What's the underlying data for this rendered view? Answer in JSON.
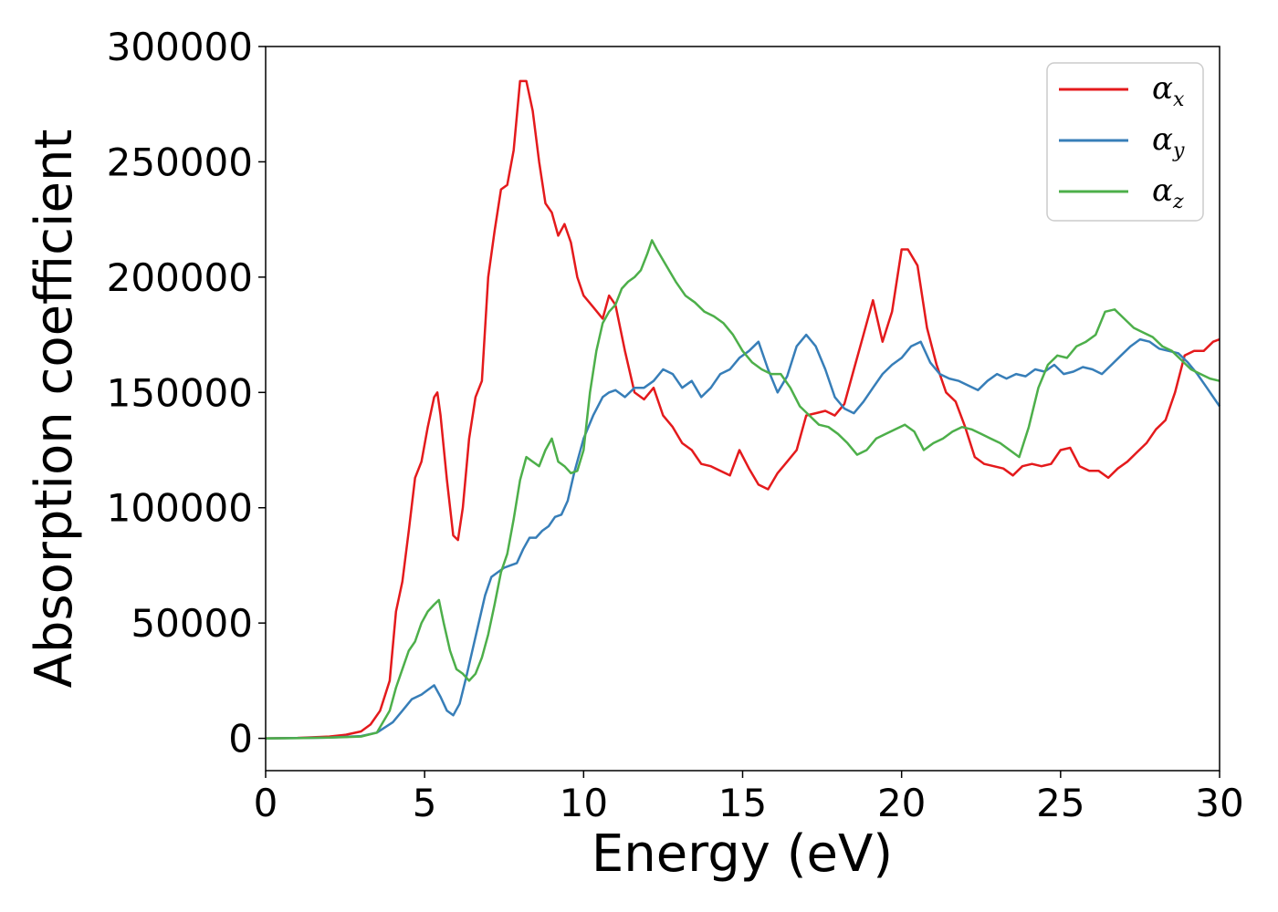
{
  "chart_data": {
    "type": "line",
    "title": "",
    "xlabel": "Energy (eV)",
    "ylabel": "Absorption coefficient",
    "xlim": [
      0,
      30
    ],
    "ylim": [
      -14000,
      300000
    ],
    "xticks": [
      0,
      5,
      10,
      15,
      20,
      25,
      30
    ],
    "yticks": [
      0,
      50000,
      100000,
      150000,
      200000,
      250000,
      300000
    ],
    "grid": false,
    "legend_position": "top-right",
    "series": [
      {
        "name": "α_x",
        "legend_symbol": "α",
        "legend_subscript": "x",
        "color": "#e41a1c",
        "x": [
          0,
          1,
          2,
          2.5,
          3,
          3.3,
          3.6,
          3.9,
          4.1,
          4.3,
          4.5,
          4.7,
          4.9,
          5.1,
          5.3,
          5.4,
          5.5,
          5.7,
          5.9,
          6.05,
          6.2,
          6.4,
          6.6,
          6.8,
          7,
          7.2,
          7.4,
          7.6,
          7.8,
          8.0,
          8.2,
          8.4,
          8.6,
          8.8,
          9.0,
          9.2,
          9.4,
          9.6,
          9.8,
          10,
          10.3,
          10.6,
          10.8,
          11,
          11.3,
          11.6,
          11.9,
          12.2,
          12.5,
          12.8,
          13.1,
          13.4,
          13.7,
          14.0,
          14.3,
          14.6,
          14.9,
          15.2,
          15.5,
          15.8,
          16.1,
          16.4,
          16.7,
          17.0,
          17.3,
          17.6,
          17.9,
          18.2,
          18.5,
          18.8,
          19.1,
          19.4,
          19.7,
          20.0,
          20.2,
          20.5,
          20.8,
          21.1,
          21.4,
          21.7,
          22.0,
          22.3,
          22.6,
          22.9,
          23.2,
          23.5,
          23.8,
          24.1,
          24.4,
          24.7,
          25.0,
          25.3,
          25.6,
          25.9,
          26.2,
          26.5,
          26.8,
          27.1,
          27.4,
          27.7,
          28.0,
          28.3,
          28.6,
          28.9,
          29.2,
          29.5,
          29.8,
          30
        ],
        "y": [
          0,
          200,
          800,
          1500,
          3000,
          6000,
          12000,
          25000,
          55000,
          68000,
          90000,
          113000,
          120000,
          135000,
          148000,
          150000,
          140000,
          112000,
          88000,
          86000,
          100000,
          130000,
          148000,
          155000,
          200000,
          220000,
          238000,
          240000,
          255000,
          285000,
          285000,
          272000,
          250000,
          232000,
          228000,
          218000,
          223000,
          215000,
          200000,
          192000,
          187000,
          182000,
          192000,
          188000,
          168000,
          150000,
          147000,
          152000,
          140000,
          135000,
          128000,
          125000,
          119000,
          118000,
          116000,
          114000,
          125000,
          117000,
          110000,
          108000,
          115000,
          120000,
          125000,
          140000,
          141000,
          142000,
          140000,
          145000,
          160000,
          175000,
          190000,
          172000,
          185000,
          212000,
          212000,
          205000,
          178000,
          162000,
          150000,
          146000,
          135000,
          122000,
          119000,
          118000,
          117000,
          114000,
          118000,
          119000,
          118000,
          119000,
          125000,
          126000,
          118000,
          116000,
          116000,
          113000,
          117000,
          120000,
          124000,
          128000,
          134000,
          138000,
          150000,
          166000,
          168000,
          168000,
          172000,
          173000
        ]
      },
      {
        "name": "α_y",
        "legend_symbol": "α",
        "legend_subscript": "y",
        "color": "#377eb8",
        "x": [
          0,
          1,
          2,
          3,
          3.5,
          4,
          4.3,
          4.6,
          4.9,
          5.1,
          5.3,
          5.5,
          5.7,
          5.9,
          6.1,
          6.3,
          6.5,
          6.7,
          6.9,
          7.1,
          7.3,
          7.5,
          7.7,
          7.9,
          8.1,
          8.3,
          8.5,
          8.7,
          8.9,
          9.1,
          9.3,
          9.5,
          9.7,
          10,
          10.3,
          10.6,
          10.8,
          11,
          11.3,
          11.6,
          11.9,
          12.2,
          12.5,
          12.8,
          13.1,
          13.4,
          13.7,
          14.0,
          14.3,
          14.6,
          14.9,
          15.2,
          15.5,
          15.8,
          16.1,
          16.4,
          16.7,
          17.0,
          17.3,
          17.6,
          17.9,
          18.2,
          18.5,
          18.8,
          19.1,
          19.4,
          19.7,
          20.0,
          20.3,
          20.6,
          20.9,
          21.2,
          21.5,
          21.8,
          22.1,
          22.4,
          22.7,
          23.0,
          23.3,
          23.6,
          23.9,
          24.2,
          24.5,
          24.8,
          25.1,
          25.4,
          25.7,
          26.0,
          26.3,
          26.6,
          26.9,
          27.2,
          27.5,
          27.8,
          28.1,
          28.4,
          28.7,
          29.0,
          29.3,
          29.6,
          30
        ],
        "y": [
          0,
          100,
          300,
          1000,
          2500,
          7000,
          12000,
          17000,
          19000,
          21000,
          23000,
          18000,
          12000,
          10000,
          15000,
          26000,
          38000,
          50000,
          62000,
          70000,
          72000,
          74000,
          75000,
          76000,
          82000,
          87000,
          87000,
          90000,
          92000,
          96000,
          97000,
          103000,
          115000,
          130000,
          140000,
          148000,
          150000,
          151000,
          148000,
          152000,
          152000,
          155000,
          160000,
          158000,
          152000,
          155000,
          148000,
          152000,
          158000,
          160000,
          165000,
          168000,
          172000,
          160000,
          150000,
          157000,
          170000,
          175000,
          170000,
          160000,
          148000,
          143000,
          141000,
          146000,
          152000,
          158000,
          162000,
          165000,
          170000,
          172000,
          163000,
          158000,
          156000,
          155000,
          153000,
          151000,
          155000,
          158000,
          156000,
          158000,
          157000,
          160000,
          159000,
          162000,
          158000,
          159000,
          161000,
          160000,
          158000,
          162000,
          166000,
          170000,
          173000,
          172000,
          169000,
          168000,
          167000,
          163000,
          158000,
          152000,
          144000
        ]
      },
      {
        "name": "α_z",
        "legend_symbol": "α",
        "legend_subscript": "z",
        "color": "#4daf4a",
        "x": [
          0,
          1,
          2,
          3,
          3.5,
          3.9,
          4.1,
          4.3,
          4.5,
          4.7,
          4.9,
          5.1,
          5.3,
          5.45,
          5.6,
          5.8,
          6.0,
          6.2,
          6.4,
          6.6,
          6.8,
          7.0,
          7.2,
          7.4,
          7.6,
          7.8,
          8.0,
          8.2,
          8.4,
          8.6,
          8.8,
          9.0,
          9.2,
          9.4,
          9.6,
          9.8,
          10.0,
          10.2,
          10.4,
          10.6,
          10.8,
          11.0,
          11.2,
          11.4,
          11.6,
          11.8,
          12.0,
          12.15,
          12.3,
          12.6,
          12.9,
          13.2,
          13.5,
          13.8,
          14.1,
          14.4,
          14.7,
          15.0,
          15.3,
          15.6,
          15.9,
          16.2,
          16.5,
          16.8,
          17.1,
          17.4,
          17.7,
          18.0,
          18.3,
          18.6,
          18.9,
          19.2,
          19.5,
          19.8,
          20.1,
          20.4,
          20.7,
          21.0,
          21.3,
          21.6,
          21.9,
          22.2,
          22.5,
          22.8,
          23.1,
          23.4,
          23.7,
          24.0,
          24.3,
          24.6,
          24.9,
          25.2,
          25.5,
          25.8,
          26.1,
          26.4,
          26.7,
          27.0,
          27.3,
          27.6,
          27.9,
          28.2,
          28.5,
          28.8,
          29.1,
          29.4,
          29.7,
          30
        ],
        "y": [
          0,
          80,
          300,
          800,
          2500,
          12000,
          22000,
          30000,
          38000,
          42000,
          50000,
          55000,
          58000,
          60000,
          50000,
          38000,
          30000,
          28000,
          25000,
          28000,
          35000,
          45000,
          58000,
          72000,
          80000,
          95000,
          112000,
          122000,
          120000,
          118000,
          125000,
          130000,
          120000,
          118000,
          115000,
          116000,
          125000,
          150000,
          168000,
          180000,
          185000,
          188000,
          195000,
          198000,
          200000,
          203000,
          210000,
          216000,
          212000,
          205000,
          198000,
          192000,
          189000,
          185000,
          183000,
          180000,
          175000,
          168000,
          163000,
          160000,
          158000,
          158000,
          152000,
          144000,
          140000,
          136000,
          135000,
          132000,
          128000,
          123000,
          125000,
          130000,
          132000,
          134000,
          136000,
          133000,
          125000,
          128000,
          130000,
          133000,
          135000,
          134000,
          132000,
          130000,
          128000,
          125000,
          122000,
          135000,
          152000,
          162000,
          166000,
          165000,
          170000,
          172000,
          175000,
          185000,
          186000,
          182000,
          178000,
          176000,
          174000,
          170000,
          168000,
          164000,
          160000,
          158000,
          156000,
          155000
        ]
      }
    ]
  }
}
